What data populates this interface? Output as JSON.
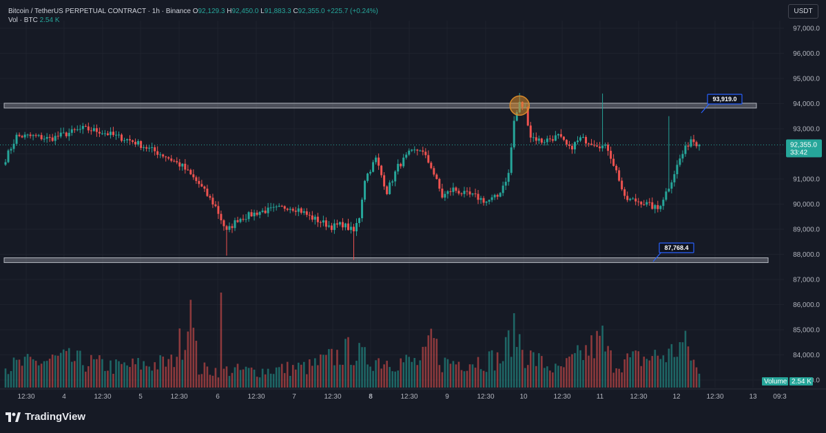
{
  "legend": {
    "symbol": "Bitcoin / TetherUS PERPETUAL CONTRACT · 1h · Binance",
    "o_label": "O",
    "o_value": "92,129.3",
    "h_label": "H",
    "h_value": "92,450.0",
    "l_label": "L",
    "l_value": "91,883.3",
    "c_label": "C",
    "c_value": "92,355.0",
    "change": "+225.7 (+0.24%)",
    "vol_label": "Vol · BTC",
    "vol_value": "2.54 K"
  },
  "unit_button": "USDT",
  "brand": "TradingView",
  "colors": {
    "background": "#161a25",
    "up": "#26a69a",
    "down": "#ef5350",
    "grid": "#1e222d",
    "zone": "#b2b5be",
    "marker": "#d98a2b",
    "label_border": "#2962ff"
  },
  "chart_data": {
    "type": "candlestick",
    "y_ticks": [
      "97,000.0",
      "96,000.0",
      "95,000.0",
      "94,000.0",
      "93,000.0",
      "92,000.0",
      "91,000.0",
      "90,000.0",
      "89,000.0",
      "88,000.0",
      "87,000.0",
      "86,000.0",
      "85,000.0",
      "84,000.0",
      "83,000.0"
    ],
    "ylim": [
      82700,
      97300
    ],
    "x_ticks": [
      "12:30",
      "4",
      "12:30",
      "5",
      "12:30",
      "6",
      "12:30",
      "7",
      "12:30",
      "8",
      "12:30",
      "9",
      "12:30",
      "10",
      "12:30",
      "11",
      "12:30",
      "12",
      "12:30",
      "13",
      "09:3"
    ],
    "bold_x_tick": "8",
    "current_price": {
      "value": 92355.0,
      "label": "92,355.0",
      "countdown": "33:42"
    },
    "resistance": {
      "value": 93919.0,
      "label": "93,919.0"
    },
    "support": {
      "value": 87768.4,
      "label": "87,768.4"
    },
    "volume_label": "Volume",
    "volume_value": "2.54 K",
    "path_anchors": [
      [
        0,
        91800
      ],
      [
        4,
        92700
      ],
      [
        10,
        92700
      ],
      [
        16,
        92600
      ],
      [
        22,
        92800
      ],
      [
        28,
        93000
      ],
      [
        34,
        92900
      ],
      [
        40,
        92700
      ],
      [
        46,
        92500
      ],
      [
        52,
        92200
      ],
      [
        58,
        91900
      ],
      [
        64,
        91500
      ],
      [
        70,
        90800
      ],
      [
        76,
        89900
      ],
      [
        80,
        88900
      ],
      [
        84,
        89400
      ],
      [
        92,
        89700
      ],
      [
        98,
        89800
      ],
      [
        102,
        89900
      ],
      [
        106,
        89800
      ],
      [
        110,
        89500
      ],
      [
        114,
        89300
      ],
      [
        118,
        89100
      ],
      [
        122,
        89200
      ],
      [
        126,
        88900
      ],
      [
        128,
        89500
      ],
      [
        130,
        91000
      ],
      [
        134,
        91800
      ],
      [
        138,
        90500
      ],
      [
        142,
        91500
      ],
      [
        146,
        92000
      ],
      [
        150,
        92200
      ],
      [
        154,
        91500
      ],
      [
        158,
        90300
      ],
      [
        162,
        90600
      ],
      [
        166,
        90400
      ],
      [
        170,
        90300
      ],
      [
        174,
        90100
      ],
      [
        178,
        90300
      ],
      [
        182,
        91200
      ],
      [
        184,
        93300
      ],
      [
        186,
        94000
      ],
      [
        188,
        93800
      ],
      [
        190,
        92700
      ],
      [
        194,
        92500
      ],
      [
        200,
        92700
      ],
      [
        204,
        92200
      ],
      [
        208,
        92600
      ],
      [
        214,
        92400
      ],
      [
        218,
        92200
      ],
      [
        222,
        91000
      ],
      [
        224,
        90200
      ],
      [
        230,
        90100
      ],
      [
        236,
        89800
      ],
      [
        240,
        90700
      ],
      [
        244,
        91800
      ],
      [
        248,
        92600
      ],
      [
        251,
        92350
      ]
    ],
    "volume_series_note": "Volume bars drawn at bottom, scaled to panel",
    "volume_anchors": [
      [
        0,
        0.25
      ],
      [
        20,
        0.35
      ],
      [
        40,
        0.25
      ],
      [
        60,
        0.3
      ],
      [
        67,
        0.82
      ],
      [
        70,
        0.22
      ],
      [
        90,
        0.2
      ],
      [
        110,
        0.25
      ],
      [
        125,
        0.45
      ],
      [
        130,
        0.35
      ],
      [
        150,
        0.3
      ],
      [
        155,
        0.55
      ],
      [
        158,
        0.3
      ],
      [
        180,
        0.35
      ],
      [
        184,
        0.75
      ],
      [
        188,
        0.4
      ],
      [
        200,
        0.2
      ],
      [
        215,
        0.55
      ],
      [
        220,
        0.3
      ],
      [
        240,
        0.4
      ],
      [
        246,
        0.55
      ],
      [
        251,
        0.15
      ]
    ]
  }
}
